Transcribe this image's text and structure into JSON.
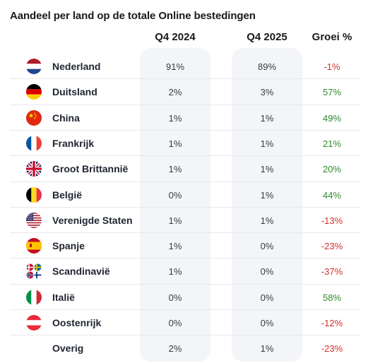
{
  "title": "Aandeel per land op de totale Online bestedingen",
  "columns": {
    "q4_2024": "Q4 2024",
    "q4_2025": "Q4 2025",
    "growth": "Groei %"
  },
  "colors": {
    "positive": "#2e8b2e",
    "negative": "#d92c2c",
    "column_band": "#f3f5f8"
  },
  "chart_data": {
    "type": "table",
    "title": "Aandeel per land op de totale Online bestedingen",
    "columns": [
      "Q4 2024",
      "Q4 2025",
      "Groei %"
    ],
    "rows": [
      {
        "country": "Nederland",
        "flag": "netherlands-flag-icon",
        "q4_2024": "91%",
        "q4_2025": "89%",
        "growth": "-1%",
        "trend": "neg"
      },
      {
        "country": "Duitsland",
        "flag": "germany-flag-icon",
        "q4_2024": "2%",
        "q4_2025": "3%",
        "growth": "57%",
        "trend": "pos"
      },
      {
        "country": "China",
        "flag": "china-flag-icon",
        "q4_2024": "1%",
        "q4_2025": "1%",
        "growth": "49%",
        "trend": "pos"
      },
      {
        "country": "Frankrijk",
        "flag": "france-flag-icon",
        "q4_2024": "1%",
        "q4_2025": "1%",
        "growth": "21%",
        "trend": "pos"
      },
      {
        "country": "Groot Brittannië",
        "flag": "uk-flag-icon",
        "q4_2024": "1%",
        "q4_2025": "1%",
        "growth": "20%",
        "trend": "pos"
      },
      {
        "country": "België",
        "flag": "belgium-flag-icon",
        "q4_2024": "0%",
        "q4_2025": "1%",
        "growth": "44%",
        "trend": "pos"
      },
      {
        "country": "Verenigde Staten",
        "flag": "usa-flag-icon",
        "q4_2024": "1%",
        "q4_2025": "1%",
        "growth": "-13%",
        "trend": "neg"
      },
      {
        "country": "Spanje",
        "flag": "spain-flag-icon",
        "q4_2024": "1%",
        "q4_2025": "0%",
        "growth": "-23%",
        "trend": "neg"
      },
      {
        "country": "Scandinavië",
        "flag": "scandinavia-flags-icon",
        "q4_2024": "1%",
        "q4_2025": "0%",
        "growth": "-37%",
        "trend": "neg"
      },
      {
        "country": "Italië",
        "flag": "italy-flag-icon",
        "q4_2024": "0%",
        "q4_2025": "0%",
        "growth": "58%",
        "trend": "pos"
      },
      {
        "country": "Oostenrijk",
        "flag": "austria-flag-icon",
        "q4_2024": "0%",
        "q4_2025": "0%",
        "growth": "-12%",
        "trend": "neg"
      },
      {
        "country": "Overig",
        "flag": "",
        "q4_2024": "2%",
        "q4_2025": "1%",
        "growth": "-23%",
        "trend": "neg"
      }
    ]
  }
}
